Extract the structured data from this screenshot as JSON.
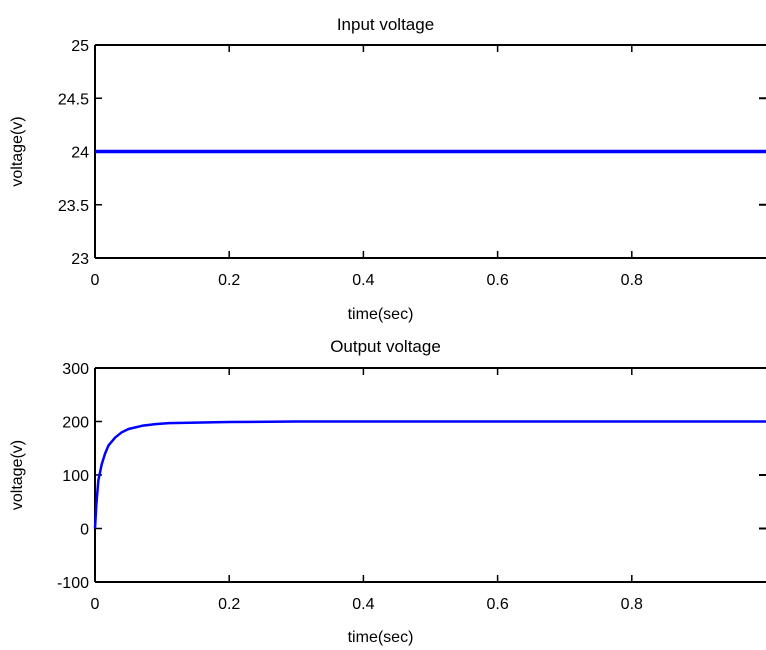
{
  "chart_data": [
    {
      "type": "line",
      "title": "Input voltage",
      "xlabel": "time(sec)",
      "ylabel": "voltage(v)",
      "xlim": [
        0,
        1
      ],
      "ylim": [
        23,
        25
      ],
      "xticks": [
        0,
        0.2,
        0.4,
        0.6,
        0.8
      ],
      "xtick_labels": [
        "0",
        "0.2",
        "0.4",
        "0.6",
        "0.8"
      ],
      "yticks": [
        23,
        23.5,
        24,
        24.5,
        25
      ],
      "ytick_labels": [
        "23",
        "23.5",
        "24",
        "24.5",
        "25"
      ],
      "grid": false,
      "series": [
        {
          "color": "#0000ff",
          "x": [
            0,
            1
          ],
          "y": [
            24,
            24
          ]
        }
      ]
    },
    {
      "type": "line",
      "title": "Output voltage",
      "xlabel": "time(sec)",
      "ylabel": "voltage(v)",
      "xlim": [
        0,
        1
      ],
      "ylim": [
        -100,
        300
      ],
      "xticks": [
        0,
        0.2,
        0.4,
        0.6,
        0.8
      ],
      "xtick_labels": [
        "0",
        "0.2",
        "0.4",
        "0.6",
        "0.8"
      ],
      "yticks": [
        -100,
        0,
        100,
        200,
        300
      ],
      "ytick_labels": [
        "-100",
        "0",
        "100",
        "200",
        "300"
      ],
      "grid": false,
      "series": [
        {
          "color": "#0000ff",
          "x": [
            0,
            0.002,
            0.005,
            0.01,
            0.015,
            0.02,
            0.03,
            0.04,
            0.05,
            0.07,
            0.09,
            0.11,
            0.15,
            0.2,
            0.3,
            0.4,
            0.5,
            0.6,
            0.7,
            0.8,
            0.9,
            1.0
          ],
          "y": [
            0,
            45,
            90,
            120,
            140,
            155,
            170,
            180,
            186,
            192,
            195,
            197,
            198,
            199,
            200,
            200,
            200,
            200,
            200,
            200,
            200,
            200
          ]
        }
      ]
    }
  ]
}
